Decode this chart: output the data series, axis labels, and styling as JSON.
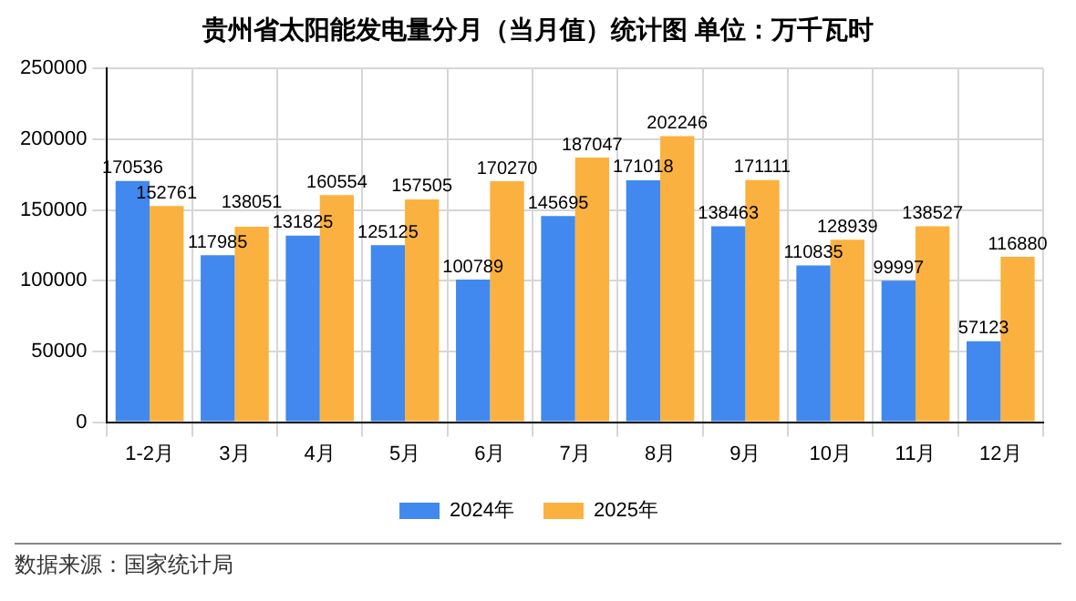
{
  "chart_data": {
    "type": "bar",
    "title": "贵州省太阳能发电量分月（当月值）统计图 单位：万千瓦时",
    "categories": [
      "1-2月",
      "3月",
      "4月",
      "5月",
      "6月",
      "7月",
      "8月",
      "9月",
      "10月",
      "11月",
      "12月"
    ],
    "series": [
      {
        "name": "2024年",
        "color": "#4189ee",
        "values": [
          170536,
          117985,
          131825,
          125125,
          100789,
          145695,
          171018,
          138463,
          110835,
          99997,
          57123
        ]
      },
      {
        "name": "2025年",
        "color": "#fbb13f",
        "values": [
          152761,
          138051,
          160554,
          157505,
          170270,
          187047,
          202246,
          171111,
          128939,
          138527,
          116880
        ]
      }
    ],
    "ylim": [
      0,
      250000
    ],
    "yticks": [
      0,
      50000,
      100000,
      150000,
      200000,
      250000
    ],
    "grid": true,
    "legend": "bottom",
    "data_labels": true,
    "annotations": [
      "数据来源：国家统计局"
    ]
  }
}
